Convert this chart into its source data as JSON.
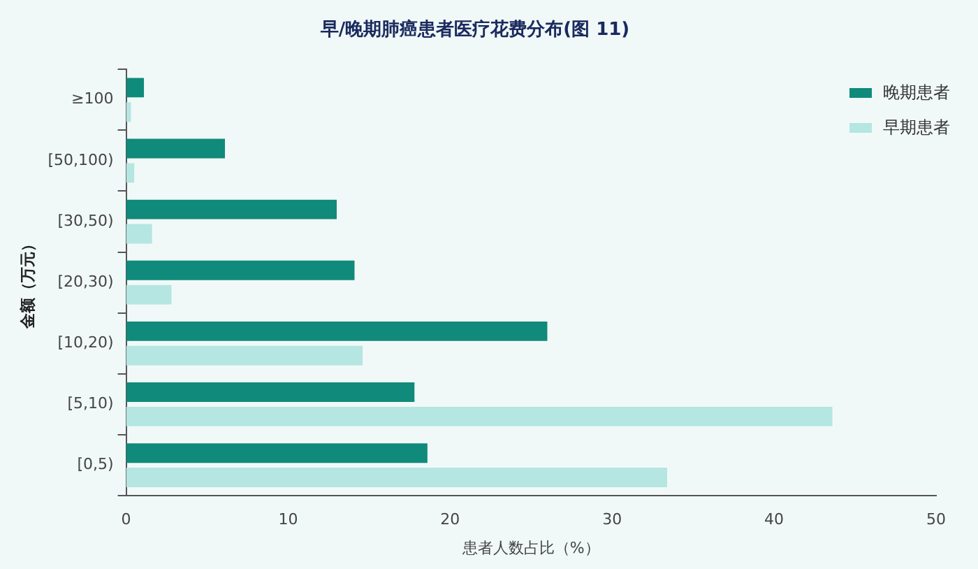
{
  "chart_data": {
    "type": "bar",
    "orientation": "horizontal",
    "title": "早/晚期肺癌患者医疗花费分布(图 11)",
    "xlabel": "患者人数占比（%）",
    "ylabel": "金额（万元）",
    "categories": [
      "≥100",
      "[50,100)",
      "[30,50)",
      "[20,30)",
      "[10,20)",
      "[5,10)",
      "[0,5)"
    ],
    "series": [
      {
        "name": "晚期患者",
        "color": "#108a7a",
        "values": [
          1.1,
          6.1,
          13.0,
          14.1,
          26.0,
          17.8,
          18.6
        ]
      },
      {
        "name": "早期患者",
        "color": "#b5e6e1",
        "values": [
          0.3,
          0.5,
          1.6,
          2.8,
          14.6,
          43.6,
          33.4
        ]
      }
    ],
    "xlim": [
      0,
      50
    ],
    "xticks": [
      0,
      10,
      20,
      30,
      40,
      50
    ],
    "grid": false,
    "legend": "top right"
  }
}
